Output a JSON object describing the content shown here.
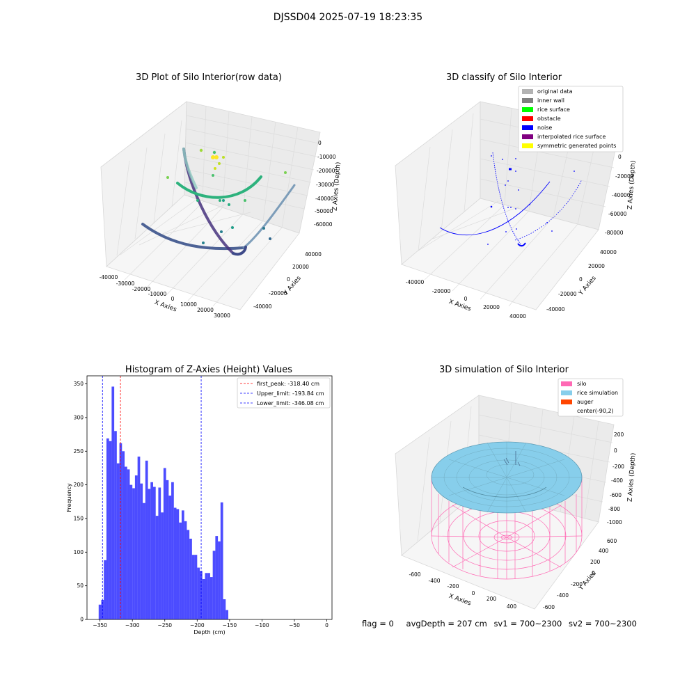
{
  "suptitle": "DJSSD04 2025-07-19 18:23:35",
  "panel1": {
    "title": "3D Plot of Silo Interior(row data)",
    "xlabel": "X Axies",
    "ylabel": "Y Axies",
    "zlabel": "Z Axies (Depth)",
    "xticks": [
      "-40000",
      "-30000",
      "-20000",
      "-10000",
      "0",
      "10000",
      "20000",
      "30000"
    ],
    "yticks": [
      "-40000",
      "-20000",
      "0",
      "20000",
      "40000"
    ],
    "zticks": [
      "0",
      "-10000",
      "-20000",
      "-30000",
      "-40000",
      "-50000",
      "-60000"
    ]
  },
  "panel2": {
    "title": "3D classify of Silo Interior",
    "xlabel": "X Axies",
    "ylabel": "Y Axies",
    "zlabel": "Z Axies (Depth)",
    "xticks": [
      "-40000",
      "-20000",
      "0",
      "20000",
      "40000"
    ],
    "yticks": [
      "-40000",
      "-20000",
      "0",
      "20000",
      "40000"
    ],
    "zticks": [
      "0",
      "-20000",
      "-40000",
      "-60000",
      "-80000"
    ],
    "legend": [
      {
        "label": "original data",
        "color": "#b3b3b3"
      },
      {
        "label": "inner wall",
        "color": "#808080"
      },
      {
        "label": "rice surface",
        "color": "#00ff00"
      },
      {
        "label": "obstacle",
        "color": "#ff0000"
      },
      {
        "label": "noise",
        "color": "#0000ff"
      },
      {
        "label": "interpolated rice surface",
        "color": "#800080"
      },
      {
        "label": "symmetric generated points",
        "color": "#ffff00"
      }
    ]
  },
  "panel4": {
    "title": "3D simulation of Silo Interior",
    "xlabel": "X Axies",
    "ylabel": "Y Axies",
    "zlabel": "Z Axies (Depth)",
    "xticks": [
      "-600",
      "-400",
      "-200",
      "0",
      "200",
      "400"
    ],
    "yticks": [
      "-600",
      "-400",
      "-200",
      "0",
      "200",
      "400",
      "600"
    ],
    "zticks": [
      "200",
      "0",
      "-200",
      "-400",
      "-600",
      "-800",
      "-1000"
    ],
    "legend": [
      {
        "label": "silo",
        "color": "#ff69b4"
      },
      {
        "label": "rice simulation",
        "color": "#87ceeb"
      },
      {
        "label": "auger",
        "color": "#ff4500"
      },
      {
        "label": "center(-90,2)",
        "color": ""
      }
    ]
  },
  "status": {
    "flag": "flag = 0",
    "avg": "avgDepth = 207 cm",
    "sv1": "sv1 = 700~2300",
    "sv2": "sv2 = 700~2300"
  },
  "chart_data": [
    {
      "type": "histogram",
      "title": "Histogram of Z-Axies (Height) Values",
      "xlabel": "Depth (cm)",
      "ylabel": "Frequency",
      "bin_start": -352,
      "bin_width": 4,
      "values": [
        22,
        29,
        88,
        269,
        265,
        346,
        280,
        232,
        262,
        250,
        227,
        223,
        200,
        195,
        214,
        242,
        202,
        173,
        236,
        194,
        204,
        197,
        154,
        196,
        159,
        225,
        207,
        184,
        204,
        166,
        164,
        144,
        162,
        146,
        133,
        120,
        96,
        96,
        77,
        72,
        60,
        69,
        69,
        63,
        102,
        124,
        116,
        174,
        30,
        14
      ],
      "xlim": [
        -370,
        8
      ],
      "ylim": [
        0,
        362
      ],
      "xticks": [
        -350,
        -300,
        -250,
        -200,
        -150,
        -100,
        -50,
        0
      ],
      "yticks": [
        0,
        50,
        100,
        150,
        200,
        250,
        300,
        350
      ],
      "bar_color": "#0000ff",
      "lines": [
        {
          "label": "first_peak: -318.40 cm",
          "x": -318.4,
          "color": "#ff0000"
        },
        {
          "label": "Upper_limit: -193.84 cm",
          "x": -193.84,
          "color": "#0000ff"
        },
        {
          "label": "Lower_limit: -346.08 cm",
          "x": -346.08,
          "color": "#0000ff"
        }
      ],
      "legend_position": "upper right"
    }
  ]
}
